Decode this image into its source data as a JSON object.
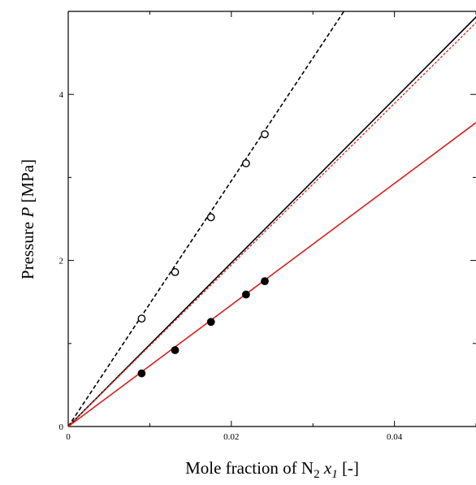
{
  "chart_data": {
    "type": "line",
    "title": "",
    "xlabel": {
      "prefix": "Mole fraction of N",
      "sub": "2",
      "var": "x",
      "var_sub": "1",
      "unit": "[-]"
    },
    "ylabel": {
      "prefix": "Pressure ",
      "var": "P",
      "unit": "[MPa]"
    },
    "xlim": [
      0,
      0.05
    ],
    "ylim": [
      0,
      5
    ],
    "xticks": [
      0,
      0.02,
      0.04
    ],
    "xtick_labels": [
      "0",
      "0.02",
      "0.04"
    ],
    "yticks": [
      0,
      2,
      4
    ],
    "ytick_labels": [
      "0",
      "2",
      "4"
    ],
    "grid": false,
    "legend": "none",
    "series": [
      {
        "style": "line-dashed",
        "color": "#000000",
        "x": [
          0,
          0.0338
        ],
        "y": [
          0,
          5.0
        ]
      },
      {
        "style": "line-solid",
        "color": "#000000",
        "x": [
          0,
          0.0507
        ],
        "y": [
          0,
          5.0
        ]
      },
      {
        "style": "line-dotted",
        "color": "#e03030",
        "x": [
          0,
          0.0514
        ],
        "y": [
          0,
          5.0
        ]
      },
      {
        "style": "line-solid",
        "color": "#d82020",
        "x": [
          0,
          0.05
        ],
        "y": [
          0,
          3.66
        ]
      },
      {
        "style": "markers-open",
        "color": "#000000",
        "x": [
          0.009,
          0.0131,
          0.0175,
          0.0218,
          0.0241
        ],
        "y": [
          1.3,
          1.86,
          2.52,
          3.17,
          3.52
        ]
      },
      {
        "style": "markers-filled",
        "color": "#000000",
        "x": [
          0.009,
          0.0131,
          0.0175,
          0.0218,
          0.0241
        ],
        "y": [
          0.64,
          0.92,
          1.26,
          1.59,
          1.75
        ]
      }
    ]
  }
}
